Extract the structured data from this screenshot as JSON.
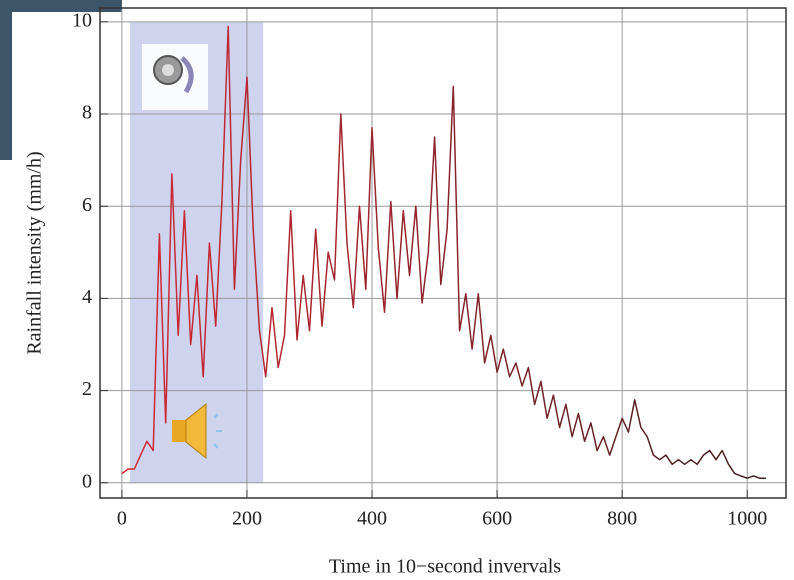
{
  "chart_data": {
    "type": "line",
    "xlabel": "Time in 10−second invervals",
    "ylabel": "Rainfall intensity (mm/h)",
    "x": [
      0,
      10,
      20,
      30,
      40,
      50,
      60,
      70,
      80,
      90,
      100,
      110,
      120,
      130,
      140,
      150,
      160,
      170,
      180,
      190,
      200,
      210,
      220,
      230,
      240,
      250,
      260,
      270,
      280,
      290,
      300,
      310,
      320,
      330,
      340,
      350,
      360,
      370,
      380,
      390,
      400,
      410,
      420,
      430,
      440,
      450,
      460,
      470,
      480,
      490,
      500,
      510,
      520,
      530,
      540,
      550,
      560,
      570,
      580,
      590,
      600,
      610,
      620,
      630,
      640,
      650,
      660,
      670,
      680,
      690,
      700,
      710,
      720,
      730,
      740,
      750,
      760,
      770,
      780,
      790,
      800,
      810,
      820,
      830,
      840,
      850,
      860,
      870,
      880,
      890,
      900,
      910,
      920,
      930,
      940,
      950,
      960,
      970,
      980,
      990,
      1000,
      1010,
      1020,
      1030
    ],
    "values": [
      0.2,
      0.3,
      0.3,
      0.6,
      0.9,
      0.7,
      5.4,
      1.3,
      6.7,
      3.2,
      5.9,
      3.0,
      4.5,
      2.3,
      5.2,
      3.4,
      6.1,
      9.9,
      4.2,
      7.0,
      8.8,
      5.5,
      3.3,
      2.3,
      3.8,
      2.5,
      3.2,
      5.9,
      3.1,
      4.5,
      3.3,
      5.5,
      3.4,
      5.0,
      4.4,
      8.0,
      5.2,
      3.8,
      6.0,
      4.2,
      7.7,
      5.1,
      3.7,
      6.1,
      4.0,
      5.9,
      4.5,
      6.0,
      3.9,
      5.0,
      7.5,
      4.3,
      5.5,
      8.6,
      3.3,
      4.1,
      2.9,
      4.1,
      2.6,
      3.2,
      2.4,
      2.9,
      2.3,
      2.6,
      2.1,
      2.5,
      1.7,
      2.2,
      1.4,
      1.9,
      1.2,
      1.7,
      1.0,
      1.5,
      0.9,
      1.3,
      0.7,
      1.0,
      0.6,
      1.0,
      1.4,
      1.1,
      1.8,
      1.2,
      1.0,
      0.6,
      0.5,
      0.6,
      0.4,
      0.5,
      0.4,
      0.5,
      0.4,
      0.6,
      0.7,
      0.5,
      0.7,
      0.4,
      0.2,
      0.15,
      0.1,
      0.15,
      0.1,
      0.1
    ],
    "colors": [
      "#d62a36",
      "#3a1e1e"
    ],
    "highlight": {
      "x": [
        13,
        226
      ],
      "y": [
        0,
        10
      ],
      "color": "#c5cdea"
    },
    "xlim": [
      -35,
      1062
    ],
    "ylim": [
      -0.33,
      10.3
    ],
    "xticks": [
      0,
      200,
      400,
      600,
      800,
      1000
    ],
    "yticks": [
      0,
      2,
      4,
      6,
      8,
      10
    ],
    "grid": true
  }
}
